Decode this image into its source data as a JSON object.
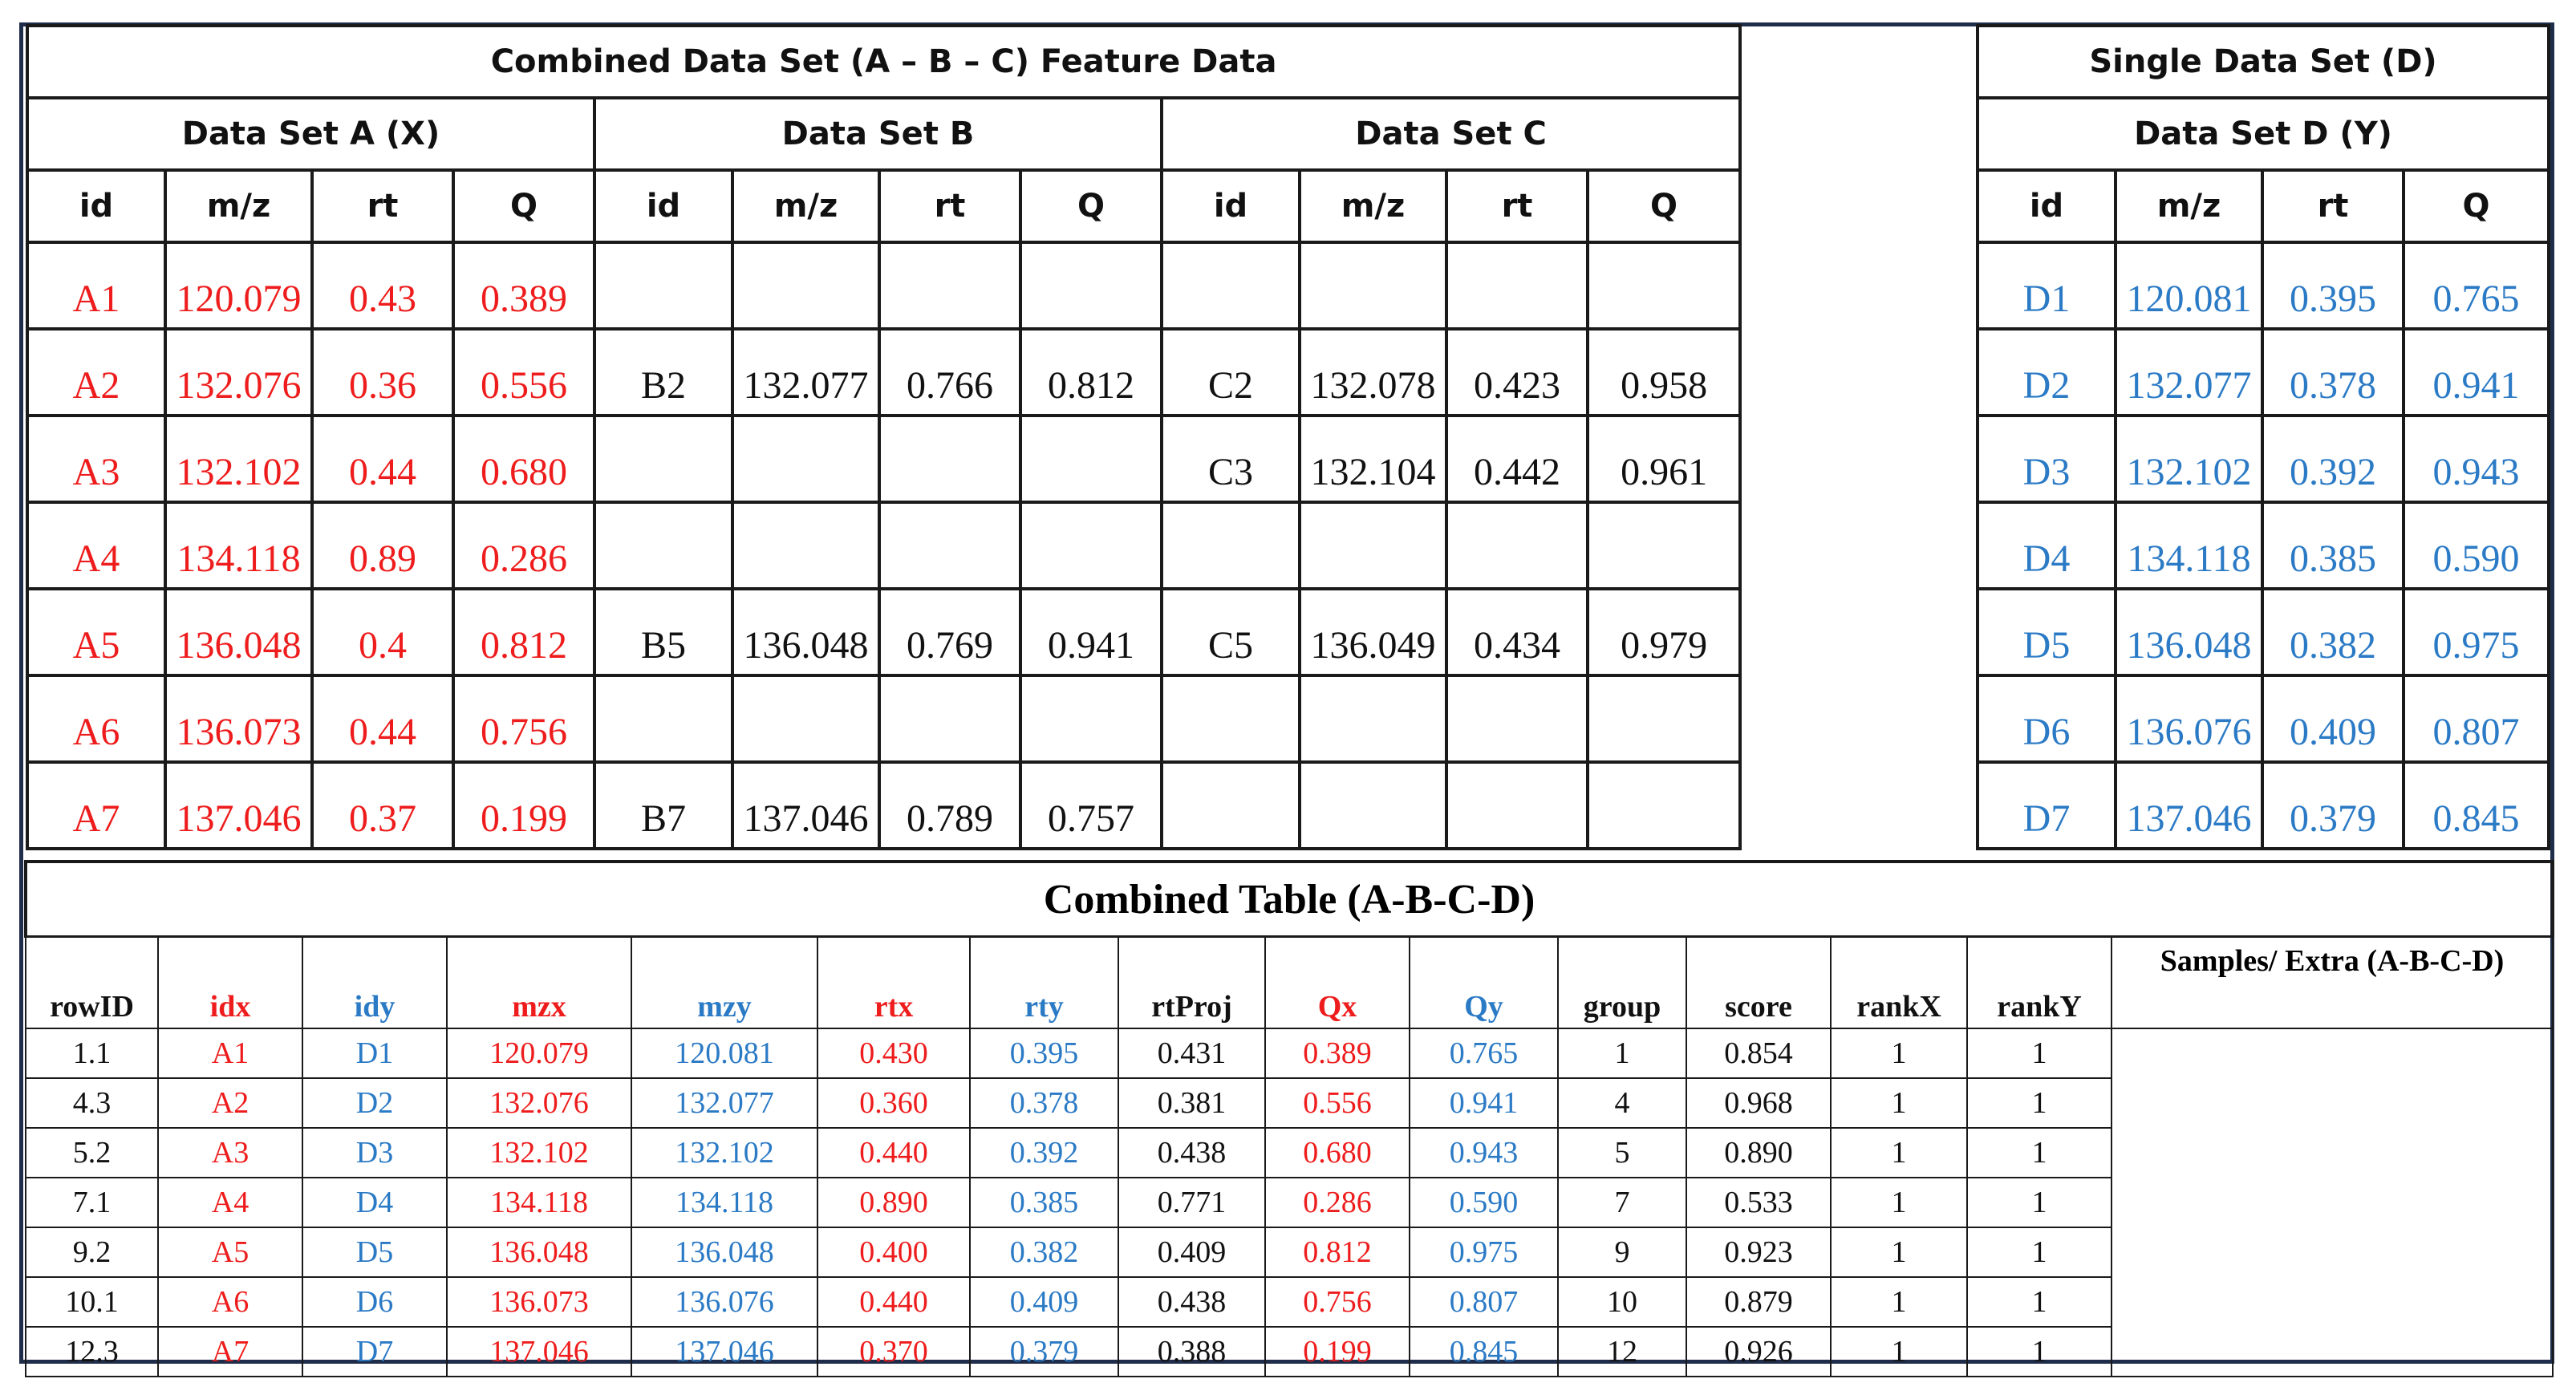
{
  "combined": {
    "title": "Combined Data Set (A – B – C) Feature Data",
    "set_a": "Data Set A (X)",
    "set_b": "Data Set B",
    "set_c": "Data Set C",
    "columns": [
      "id",
      "m/z",
      "rt",
      "Q"
    ],
    "rows": [
      [
        "A1",
        "120.079",
        "0.43",
        "0.389",
        "",
        "",
        "",
        "",
        "",
        "",
        "",
        ""
      ],
      [
        "A2",
        "132.076",
        "0.36",
        "0.556",
        "B2",
        "132.077",
        "0.766",
        "0.812",
        "C2",
        "132.078",
        "0.423",
        "0.958"
      ],
      [
        "A3",
        "132.102",
        "0.44",
        "0.680",
        "",
        "",
        "",
        "",
        "C3",
        "132.104",
        "0.442",
        "0.961"
      ],
      [
        "A4",
        "134.118",
        "0.89",
        "0.286",
        "",
        "",
        "",
        "",
        "",
        "",
        "",
        ""
      ],
      [
        "A5",
        "136.048",
        "0.4",
        "0.812",
        "B5",
        "136.048",
        "0.769",
        "0.941",
        "C5",
        "136.049",
        "0.434",
        "0.979"
      ],
      [
        "A6",
        "136.073",
        "0.44",
        "0.756",
        "",
        "",
        "",
        "",
        "",
        "",
        "",
        ""
      ],
      [
        "A7",
        "137.046",
        "0.37",
        "0.199",
        "B7",
        "137.046",
        "0.789",
        "0.757",
        "",
        "",
        "",
        ""
      ]
    ]
  },
  "single": {
    "title": "Single Data Set (D)",
    "set_d": "Data Set D (Y)",
    "columns": [
      "id",
      "m/z",
      "rt",
      "Q"
    ],
    "rows": [
      [
        "D1",
        "120.081",
        "0.395",
        "0.765"
      ],
      [
        "D2",
        "132.077",
        "0.378",
        "0.941"
      ],
      [
        "D3",
        "132.102",
        "0.392",
        "0.943"
      ],
      [
        "D4",
        "134.118",
        "0.385",
        "0.590"
      ],
      [
        "D5",
        "136.048",
        "0.382",
        "0.975"
      ],
      [
        "D6",
        "136.076",
        "0.409",
        "0.807"
      ],
      [
        "D7",
        "137.046",
        "0.379",
        "0.845"
      ]
    ]
  },
  "combined_table": {
    "title": "Combined Table (A-B-C-D)",
    "columns": [
      "rowID",
      "idx",
      "idy",
      "mzx",
      "mzy",
      "rtx",
      "rty",
      "rtProj",
      "Qx",
      "Qy",
      "group",
      "score",
      "rankX",
      "rankY"
    ],
    "column_colors": [
      "k",
      "x",
      "y",
      "x",
      "y",
      "x",
      "y",
      "k",
      "x",
      "y",
      "k",
      "k",
      "k",
      "k"
    ],
    "samples_header": "Samples/ Extra (A-B-C-D)",
    "rows": [
      [
        "1.1",
        "A1",
        "D1",
        "120.079",
        "120.081",
        "0.430",
        "0.395",
        "0.431",
        "0.389",
        "0.765",
        "1",
        "0.854",
        "1",
        "1"
      ],
      [
        "4.3",
        "A2",
        "D2",
        "132.076",
        "132.077",
        "0.360",
        "0.378",
        "0.381",
        "0.556",
        "0.941",
        "4",
        "0.968",
        "1",
        "1"
      ],
      [
        "5.2",
        "A3",
        "D3",
        "132.102",
        "132.102",
        "0.440",
        "0.392",
        "0.438",
        "0.680",
        "0.943",
        "5",
        "0.890",
        "1",
        "1"
      ],
      [
        "7.1",
        "A4",
        "D4",
        "134.118",
        "134.118",
        "0.890",
        "0.385",
        "0.771",
        "0.286",
        "0.590",
        "7",
        "0.533",
        "1",
        "1"
      ],
      [
        "9.2",
        "A5",
        "D5",
        "136.048",
        "136.048",
        "0.400",
        "0.382",
        "0.409",
        "0.812",
        "0.975",
        "9",
        "0.923",
        "1",
        "1"
      ],
      [
        "10.1",
        "A6",
        "D6",
        "136.073",
        "136.076",
        "0.440",
        "0.409",
        "0.438",
        "0.756",
        "0.807",
        "10",
        "0.879",
        "1",
        "1"
      ],
      [
        "12.3",
        "A7",
        "D7",
        "137.046",
        "137.046",
        "0.370",
        "0.379",
        "0.388",
        "0.199",
        "0.845",
        "12",
        "0.926",
        "1",
        "1"
      ]
    ]
  },
  "colors": {
    "x": "#ee1c1c",
    "y": "#2b7ac5",
    "frame": "#1f2d4a"
  }
}
